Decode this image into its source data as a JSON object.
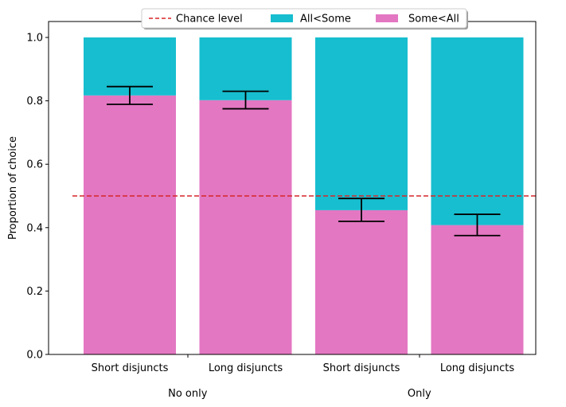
{
  "chart_data": {
    "type": "bar",
    "stacked": true,
    "categories": [
      "Short disjuncts",
      "Long disjuncts",
      "Short disjuncts",
      "Long disjuncts"
    ],
    "groups": [
      {
        "label": "No only",
        "categories": [
          0,
          1
        ]
      },
      {
        "label": "Only",
        "categories": [
          2,
          3
        ]
      }
    ],
    "series": [
      {
        "name": "Some<All",
        "color": "#e377c2",
        "values": [
          0.817,
          0.802,
          0.455,
          0.408
        ]
      },
      {
        "name": "All<Some",
        "color": "#17becf",
        "values": [
          0.183,
          0.198,
          0.545,
          0.592
        ]
      }
    ],
    "error_bars": [
      {
        "low": 0.789,
        "high": 0.845
      },
      {
        "low": 0.775,
        "high": 0.83
      },
      {
        "low": 0.42,
        "high": 0.492
      },
      {
        "low": 0.375,
        "high": 0.442
      }
    ],
    "reference_line": {
      "name": "Chance level",
      "y": 0.5,
      "color": "#d62728",
      "style": "dashed"
    },
    "ylabel": "Proportion of choice",
    "xlabel": "",
    "ylim": [
      0,
      1.05
    ],
    "yticks": [
      0.0,
      0.2,
      0.4,
      0.6,
      0.8,
      1.0
    ],
    "ytick_labels": [
      "0.0",
      "0.2",
      "0.4",
      "0.6",
      "0.8",
      "1.0"
    ],
    "grid": false,
    "legend": {
      "placement": "top-center",
      "entries": [
        {
          "label": "Chance level",
          "kind": "line",
          "color": "#d62728"
        },
        {
          "label": "All<Some",
          "kind": "patch",
          "color": "#17becf"
        },
        {
          "label": "Some<All",
          "kind": "patch",
          "color": "#e377c2"
        }
      ]
    }
  }
}
